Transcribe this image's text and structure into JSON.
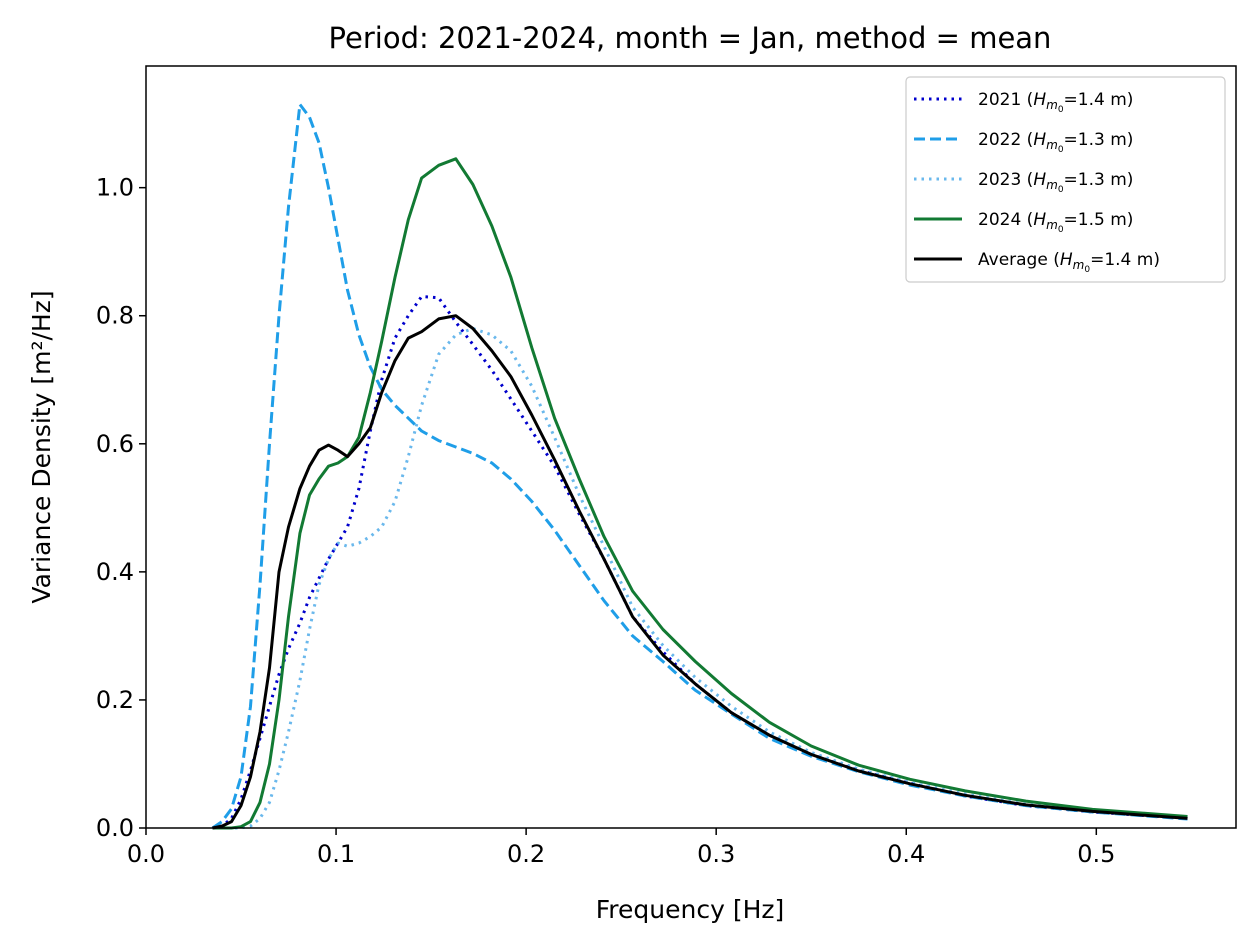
{
  "chart_data": {
    "type": "line",
    "title": "Period: 2021-2024, month = Jan, method = mean",
    "xlabel": "Frequency [Hz]",
    "ylabel": "Variance Density [m²/Hz]",
    "xlim": [
      0.0,
      0.5735
    ],
    "ylim": [
      0.0,
      1.19
    ],
    "xticks": [
      "0.0",
      "0.1",
      "0.2",
      "0.3",
      "0.4",
      "0.5"
    ],
    "yticks": [
      "0.0",
      "0.2",
      "0.4",
      "0.6",
      "0.8",
      "1.0"
    ],
    "grid": false,
    "legend_position": "top-right",
    "series": [
      {
        "name": "2021 (Hm0=1.4 m)",
        "legend_year": "2021",
        "legend_value": "=1.4 m)",
        "color": "#0000cc",
        "style": "dotted",
        "x": [
          0.035,
          0.04,
          0.045,
          0.05,
          0.055,
          0.06,
          0.065,
          0.07,
          0.075,
          0.081,
          0.086,
          0.091,
          0.096,
          0.101,
          0.106,
          0.112,
          0.118,
          0.124,
          0.131,
          0.138,
          0.145,
          0.154,
          0.163,
          0.172,
          0.182,
          0.192,
          0.203,
          0.215,
          0.228,
          0.241,
          0.256,
          0.272,
          0.289,
          0.308,
          0.328,
          0.35,
          0.375,
          0.402,
          0.431,
          0.463,
          0.498,
          0.548
        ],
        "y": [
          0.0,
          0.003,
          0.015,
          0.045,
          0.09,
          0.14,
          0.19,
          0.24,
          0.28,
          0.32,
          0.36,
          0.39,
          0.42,
          0.445,
          0.47,
          0.53,
          0.62,
          0.7,
          0.765,
          0.8,
          0.83,
          0.828,
          0.79,
          0.755,
          0.715,
          0.67,
          0.62,
          0.565,
          0.49,
          0.42,
          0.33,
          0.275,
          0.225,
          0.18,
          0.145,
          0.115,
          0.09,
          0.07,
          0.05,
          0.035,
          0.025,
          0.015
        ]
      },
      {
        "name": "2022 (Hm0=1.3 m)",
        "legend_year": "2022",
        "legend_value": "=1.3 m)",
        "color": "#1f9ee8",
        "style": "dashed",
        "x": [
          0.035,
          0.04,
          0.045,
          0.05,
          0.055,
          0.06,
          0.065,
          0.07,
          0.075,
          0.081,
          0.086,
          0.091,
          0.096,
          0.101,
          0.106,
          0.112,
          0.118,
          0.124,
          0.131,
          0.138,
          0.145,
          0.154,
          0.163,
          0.172,
          0.182,
          0.192,
          0.203,
          0.215,
          0.228,
          0.241,
          0.256,
          0.272,
          0.289,
          0.308,
          0.328,
          0.35,
          0.375,
          0.402,
          0.431,
          0.463,
          0.498,
          0.548
        ],
        "y": [
          0.0,
          0.01,
          0.03,
          0.08,
          0.19,
          0.38,
          0.6,
          0.8,
          0.97,
          1.13,
          1.11,
          1.07,
          1.0,
          0.92,
          0.84,
          0.77,
          0.72,
          0.685,
          0.66,
          0.64,
          0.62,
          0.605,
          0.595,
          0.585,
          0.57,
          0.545,
          0.51,
          0.465,
          0.41,
          0.355,
          0.3,
          0.26,
          0.215,
          0.178,
          0.14,
          0.112,
          0.088,
          0.067,
          0.05,
          0.035,
          0.025,
          0.014
        ]
      },
      {
        "name": "2023 (Hm0=1.3 m)",
        "legend_year": "2023",
        "legend_value": "=1.3 m)",
        "color": "#6ab8ec",
        "style": "dotted",
        "x": [
          0.035,
          0.04,
          0.045,
          0.05,
          0.055,
          0.06,
          0.065,
          0.07,
          0.075,
          0.081,
          0.086,
          0.091,
          0.096,
          0.101,
          0.106,
          0.112,
          0.118,
          0.124,
          0.131,
          0.138,
          0.145,
          0.154,
          0.163,
          0.172,
          0.182,
          0.192,
          0.203,
          0.215,
          0.228,
          0.241,
          0.256,
          0.272,
          0.289,
          0.308,
          0.328,
          0.35,
          0.375,
          0.402,
          0.431,
          0.463,
          0.498,
          0.548
        ],
        "y": [
          0.0,
          0.0,
          0.0,
          0.0,
          0.003,
          0.015,
          0.04,
          0.09,
          0.15,
          0.23,
          0.31,
          0.38,
          0.42,
          0.445,
          0.44,
          0.445,
          0.455,
          0.47,
          0.51,
          0.58,
          0.66,
          0.74,
          0.77,
          0.78,
          0.77,
          0.745,
          0.69,
          0.61,
          0.52,
          0.44,
          0.345,
          0.285,
          0.235,
          0.19,
          0.15,
          0.118,
          0.092,
          0.071,
          0.053,
          0.037,
          0.026,
          0.016
        ]
      },
      {
        "name": "2024 (Hm0=1.5 m)",
        "legend_year": "2024",
        "legend_value": "=1.5 m)",
        "color": "#127a33",
        "style": "solid",
        "x": [
          0.035,
          0.04,
          0.045,
          0.05,
          0.055,
          0.06,
          0.065,
          0.07,
          0.075,
          0.081,
          0.086,
          0.091,
          0.096,
          0.101,
          0.106,
          0.112,
          0.118,
          0.124,
          0.131,
          0.138,
          0.145,
          0.154,
          0.163,
          0.172,
          0.182,
          0.192,
          0.203,
          0.215,
          0.228,
          0.241,
          0.256,
          0.272,
          0.289,
          0.308,
          0.328,
          0.35,
          0.375,
          0.402,
          0.431,
          0.463,
          0.498,
          0.548
        ],
        "y": [
          0.0,
          0.0,
          0.0,
          0.002,
          0.01,
          0.04,
          0.1,
          0.2,
          0.33,
          0.46,
          0.52,
          0.545,
          0.565,
          0.57,
          0.58,
          0.61,
          0.68,
          0.76,
          0.86,
          0.95,
          1.015,
          1.035,
          1.045,
          1.005,
          0.94,
          0.86,
          0.75,
          0.64,
          0.545,
          0.455,
          0.37,
          0.31,
          0.26,
          0.21,
          0.165,
          0.128,
          0.098,
          0.076,
          0.058,
          0.042,
          0.029,
          0.018
        ]
      },
      {
        "name": "Average (Hm0=1.4 m)",
        "legend_year": "Average",
        "legend_value": "=1.4 m)",
        "color": "#000000",
        "style": "solid",
        "x": [
          0.035,
          0.04,
          0.045,
          0.05,
          0.055,
          0.06,
          0.065,
          0.07,
          0.075,
          0.081,
          0.086,
          0.091,
          0.096,
          0.101,
          0.106,
          0.112,
          0.118,
          0.124,
          0.131,
          0.138,
          0.145,
          0.154,
          0.163,
          0.172,
          0.182,
          0.192,
          0.203,
          0.215,
          0.228,
          0.241,
          0.256,
          0.272,
          0.289,
          0.308,
          0.328,
          0.35,
          0.375,
          0.402,
          0.431,
          0.463,
          0.498,
          0.548
        ],
        "y": [
          0.0,
          0.003,
          0.01,
          0.035,
          0.08,
          0.15,
          0.25,
          0.4,
          0.47,
          0.53,
          0.565,
          0.59,
          0.598,
          0.59,
          0.58,
          0.6,
          0.625,
          0.68,
          0.73,
          0.765,
          0.775,
          0.795,
          0.8,
          0.78,
          0.745,
          0.705,
          0.645,
          0.575,
          0.495,
          0.42,
          0.33,
          0.27,
          0.225,
          0.18,
          0.145,
          0.115,
          0.089,
          0.069,
          0.051,
          0.036,
          0.026,
          0.015
        ]
      }
    ]
  }
}
